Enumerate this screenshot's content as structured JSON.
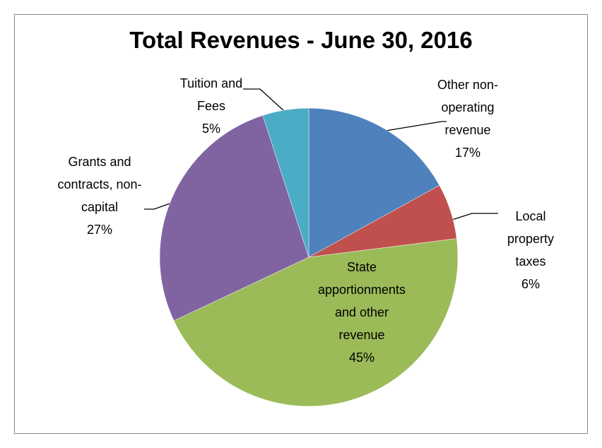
{
  "chart_data": {
    "type": "pie",
    "title": "Total Revenues - June 30, 2016",
    "categories": [
      "Other non-operating revenue",
      "Local property taxes",
      "State apportionments and other revenue",
      "Grants and contracts, non-capital",
      "Tuition and Fees"
    ],
    "values": [
      17,
      6,
      45,
      27,
      5
    ],
    "value_labels": [
      "17%",
      "6%",
      "45%",
      "27%",
      "5%"
    ],
    "colors": [
      "#4f81bd",
      "#c0504d",
      "#9bbb59",
      "#8064a2",
      "#4bacc6"
    ]
  }
}
